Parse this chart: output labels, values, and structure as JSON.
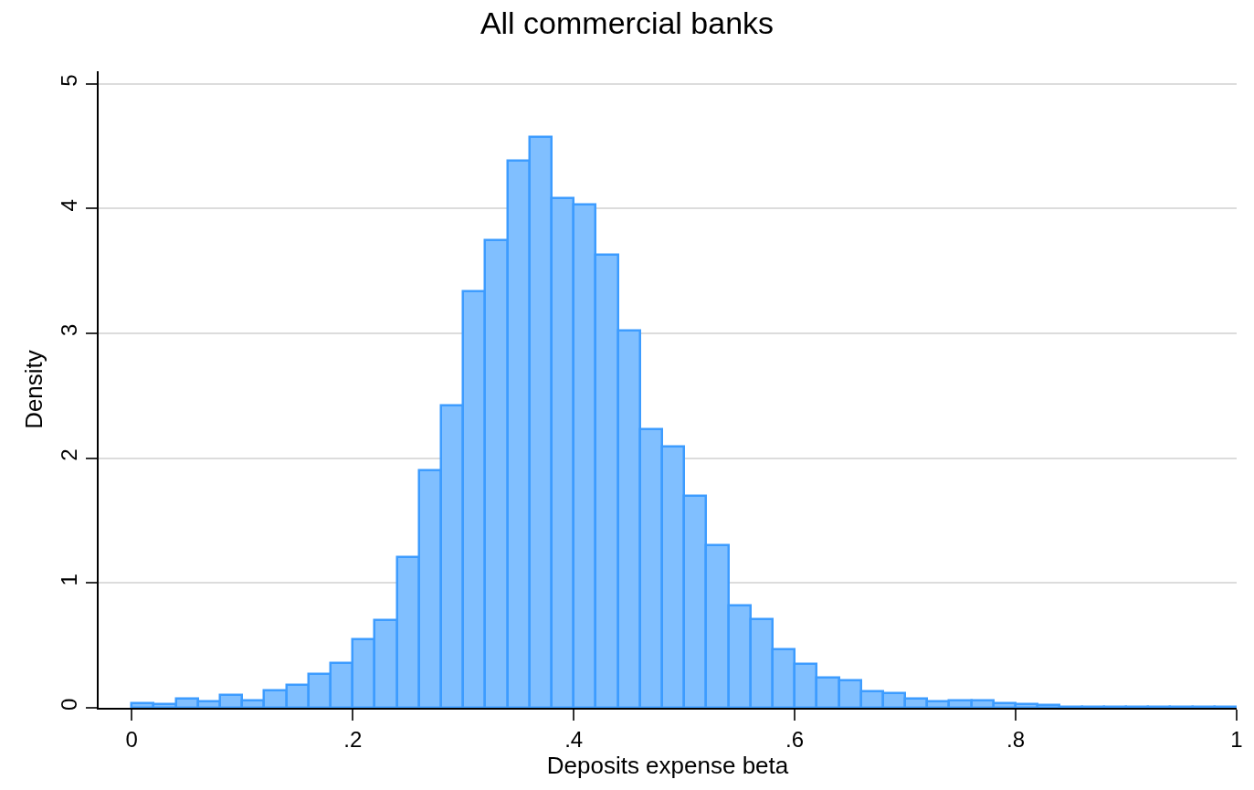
{
  "chart_data": {
    "type": "histogram",
    "title": "All commercial banks",
    "xlabel": "Deposits expense beta",
    "ylabel": "Density",
    "bins": [
      0,
      0.02,
      0.04,
      0.06,
      0.08,
      0.1,
      0.12,
      0.14,
      0.16,
      0.18,
      0.2,
      0.22,
      0.24,
      0.26,
      0.28,
      0.3,
      0.32,
      0.34,
      0.36,
      0.38,
      0.4,
      0.42,
      0.44,
      0.46,
      0.48,
      0.5,
      0.52,
      0.54,
      0.56,
      0.58,
      0.6,
      0.62,
      0.64,
      0.66,
      0.68,
      0.7,
      0.72,
      0.74,
      0.76,
      0.78,
      0.8,
      0.82,
      0.84,
      0.86,
      0.88,
      0.9,
      0.92,
      0.94,
      0.96,
      0.98,
      1
    ],
    "values": [
      0.04,
      0.03,
      0.07,
      0.05,
      0.1,
      0.06,
      0.14,
      0.18,
      0.27,
      0.36,
      0.55,
      0.7,
      1.21,
      1.9,
      2.42,
      3.34,
      3.75,
      4.38,
      4.57,
      4.08,
      4.03,
      3.63,
      3.02,
      2.23,
      2.09,
      1.7,
      1.3,
      0.82,
      0.71,
      0.47,
      0.35,
      0.24,
      0.22,
      0.13,
      0.12,
      0.07,
      0.05,
      0.06,
      0.06,
      0.04,
      0.03,
      0.02,
      0.01,
      0.01,
      0.01,
      0.01,
      0.01,
      0.01,
      0.01,
      0.01
    ],
    "color": "#80bfff",
    "xlim": [
      -0.03,
      1.0
    ],
    "ylim": [
      0,
      5.1
    ],
    "xticks": [
      {
        "value": 0,
        "label": "0"
      },
      {
        "value": 0.2,
        "label": ".2"
      },
      {
        "value": 0.4,
        "label": ".4"
      },
      {
        "value": 0.6,
        "label": ".6"
      },
      {
        "value": 0.8,
        "label": ".8"
      },
      {
        "value": 1,
        "label": "1"
      }
    ],
    "yticks": [
      0,
      1,
      2,
      3,
      4,
      5
    ],
    "grid": "y"
  }
}
